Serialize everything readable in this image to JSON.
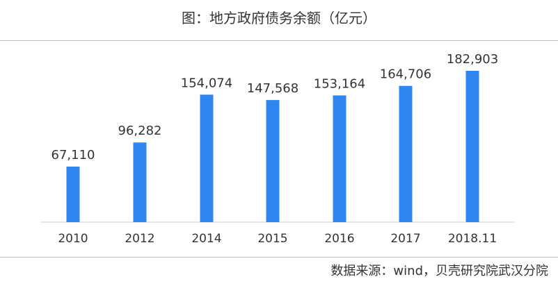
{
  "chart_data": {
    "type": "bar",
    "title": "图：地方政府债务余额（亿元）",
    "categories": [
      "2010",
      "2012",
      "2014",
      "2015",
      "2016",
      "2017",
      "2018.11"
    ],
    "values": [
      67110,
      96282,
      154074,
      147568,
      153164,
      164706,
      182903
    ],
    "value_labels": [
      "67,110",
      "96,282",
      "154,074",
      "147,568",
      "153,164",
      "164,706",
      "182,903"
    ],
    "xlabel": "",
    "ylabel": "",
    "ylim": [
      0,
      200000
    ],
    "grid": false,
    "bar_color": "#2F86F0"
  },
  "source": "数据来源：wind，贝壳研究院武汉分院"
}
